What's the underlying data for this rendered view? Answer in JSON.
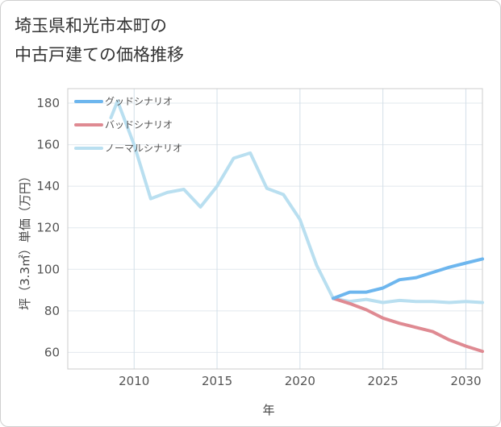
{
  "title": {
    "line1": "埼玉県和光市本町の",
    "line2": "中古戸建ての価格推移"
  },
  "chart_data": {
    "type": "line",
    "xlabel": "年",
    "ylabel": "坪（3.3㎡）単価（万円）",
    "xlim": [
      2006,
      2031
    ],
    "ylim": [
      52,
      187
    ],
    "xticks": [
      2010,
      2015,
      2020,
      2025,
      2030
    ],
    "yticks": [
      60,
      80,
      100,
      120,
      140,
      160,
      180
    ],
    "grid": true,
    "legend_position": "top-left",
    "series": [
      {
        "name": "グッドシナリオ",
        "color": "#6db6ee",
        "x": [
          2022,
          2023,
          2024,
          2025,
          2026,
          2027,
          2028,
          2029,
          2030,
          2031
        ],
        "y": [
          86,
          89,
          89,
          91,
          95,
          96,
          98.5,
          101,
          103,
          105
        ]
      },
      {
        "name": "バッドシナリオ",
        "color": "#df8a92",
        "x": [
          2022,
          2023,
          2024,
          2025,
          2026,
          2027,
          2028,
          2029,
          2030,
          2031
        ],
        "y": [
          86,
          83.5,
          80.5,
          76.5,
          74,
          72,
          70,
          66,
          63,
          60.5
        ]
      },
      {
        "name": "ノーマルシナリオ",
        "color": "#b9dff0",
        "x": [
          2008.6,
          2009,
          2010,
          2011,
          2012,
          2013,
          2014,
          2015,
          2016,
          2017,
          2018,
          2019,
          2020,
          2021,
          2022,
          2023,
          2024,
          2025,
          2026,
          2027,
          2028,
          2029,
          2030,
          2031
        ],
        "y": [
          173,
          181,
          160,
          134,
          137,
          138.5,
          130,
          140,
          153.5,
          156,
          139,
          136,
          124,
          102,
          86,
          84.5,
          85.5,
          84,
          85,
          84.5,
          84.5,
          84,
          84.5,
          84
        ]
      }
    ]
  }
}
